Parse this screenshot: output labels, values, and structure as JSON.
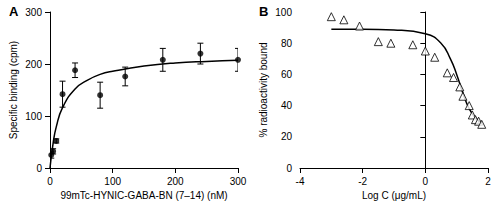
{
  "chart_data": [
    {
      "type": "scatter",
      "title": "A",
      "x_label": "99mTc-HYNIC-GABA-BN (7–14) (nM)",
      "y_label": "Specific binding (cpm)",
      "xlim": [
        0,
        300
      ],
      "xticks": [
        0,
        100,
        200,
        300
      ],
      "ylim": [
        0,
        300
      ],
      "yticks": [
        0,
        100,
        200,
        300
      ],
      "grid": false,
      "series": [
        {
          "type": "scatter",
          "marker": "circle",
          "color": "#000000",
          "x": [
            2,
            5,
            10,
            20,
            40,
            80,
            120,
            180,
            240,
            300
          ],
          "values": [
            25,
            32,
            52,
            142,
            188,
            140,
            176,
            208,
            220,
            208
          ],
          "errors": [
            6,
            5,
            4,
            25,
            14,
            25,
            18,
            22,
            20,
            22
          ]
        },
        {
          "type": "line",
          "line_style": "solid",
          "color": "#000000",
          "x": [
            0,
            5,
            10,
            20,
            40,
            60,
            80,
            100,
            150,
            200,
            250,
            300
          ],
          "values": [
            0,
            48,
            79,
            116,
            152,
            169,
            180,
            186,
            196,
            202,
            205,
            207
          ]
        }
      ]
    },
    {
      "type": "scatter",
      "title": "B",
      "x_label": "Log C (μg/mL)",
      "y_label": "% radioactivity bound",
      "xlim": [
        -4,
        2
      ],
      "xticks": [
        -4,
        -2,
        0,
        2
      ],
      "ylim": [
        0,
        100
      ],
      "yticks": [
        0,
        20,
        40,
        60,
        80,
        100
      ],
      "grid": false,
      "series": [
        {
          "type": "scatter",
          "marker": "triangle-open",
          "color": "#000000",
          "x": [
            -3,
            -2.6,
            -2.1,
            -1.5,
            -1.1,
            -0.4,
            0,
            0.3,
            0.7,
            0.9,
            1.1,
            1.2,
            1.4,
            1.5,
            1.6,
            1.7,
            1.8
          ],
          "values": [
            97,
            95,
            91,
            81,
            80,
            79,
            75,
            71,
            61,
            58,
            52,
            46,
            40,
            34,
            31,
            30,
            28
          ]
        },
        {
          "type": "line",
          "line_style": "solid",
          "color": "#000000",
          "x": [
            -3,
            -2,
            -1,
            0,
            0.5,
            0.8,
            1,
            1.2,
            1.4,
            1.6,
            1.8
          ],
          "values": [
            89,
            89,
            88.5,
            86,
            80,
            70,
            60,
            48,
            38,
            32,
            29
          ]
        }
      ]
    }
  ]
}
